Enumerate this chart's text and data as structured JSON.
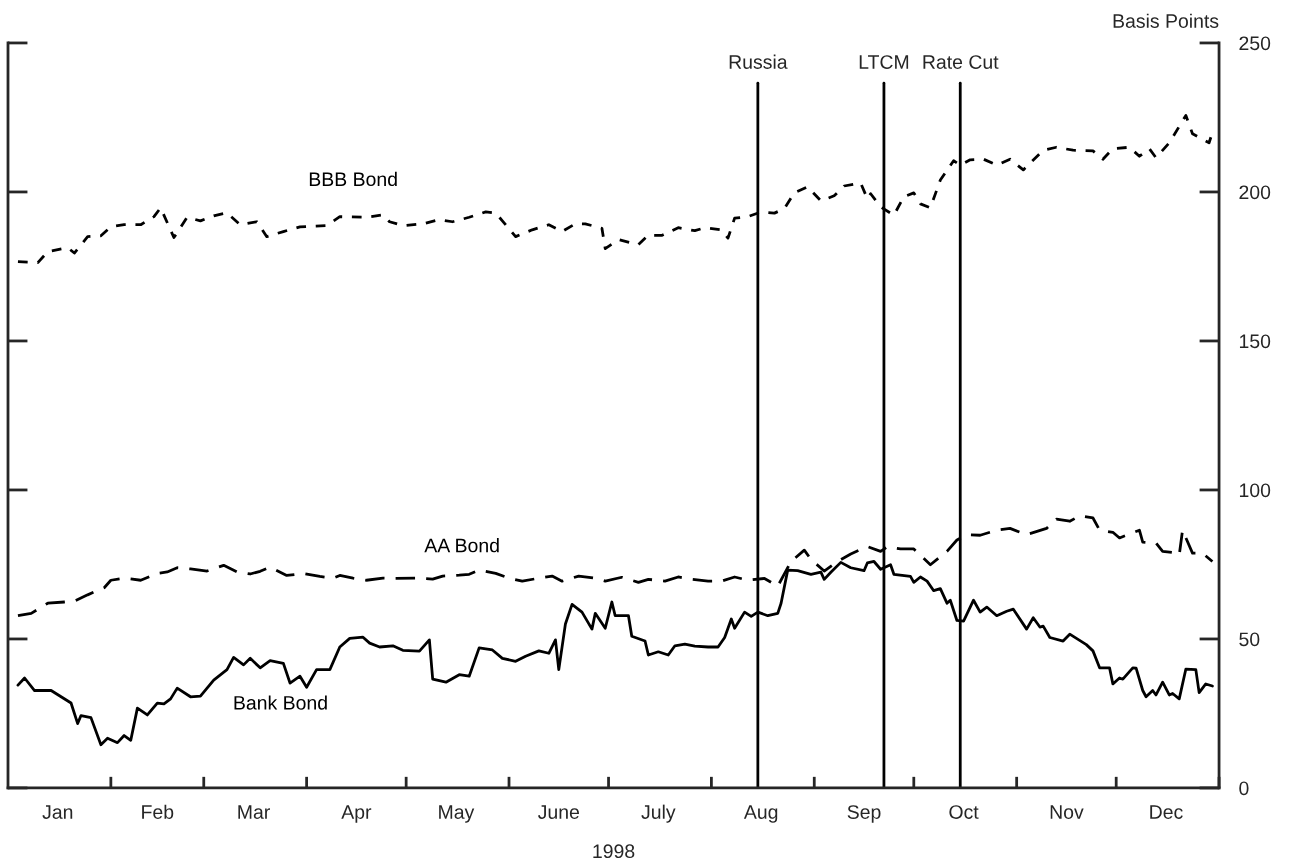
{
  "chart_data": {
    "type": "line",
    "xlabel": "1998",
    "ylabel": "Basis Points",
    "xlim": [
      "1998-01-01",
      "1999-01-01"
    ],
    "ylim": [
      0,
      250
    ],
    "yticks": [
      0,
      50,
      100,
      150,
      200,
      250
    ],
    "xticks": [
      {
        "value": "1998-01-16",
        "label": "Jan"
      },
      {
        "value": "1998-02-01",
        "label": null
      },
      {
        "value": "1998-02-15",
        "label": "Feb"
      },
      {
        "value": "1998-03-01",
        "label": null
      },
      {
        "value": "1998-03-16",
        "label": "Mar"
      },
      {
        "value": "1998-04-01",
        "label": null
      },
      {
        "value": "1998-04-16",
        "label": "Apr"
      },
      {
        "value": "1998-05-01",
        "label": null
      },
      {
        "value": "1998-05-16",
        "label": "May"
      },
      {
        "value": "1998-06-01",
        "label": null
      },
      {
        "value": "1998-06-16",
        "label": "June"
      },
      {
        "value": "1998-07-01",
        "label": null
      },
      {
        "value": "1998-07-16",
        "label": "July"
      },
      {
        "value": "1998-08-01",
        "label": null
      },
      {
        "value": "1998-08-16",
        "label": "Aug"
      },
      {
        "value": "1998-09-01",
        "label": null
      },
      {
        "value": "1998-09-16",
        "label": "Sep"
      },
      {
        "value": "1998-10-01",
        "label": null
      },
      {
        "value": "1998-10-16",
        "label": "Oct"
      },
      {
        "value": "1998-11-01",
        "label": null
      },
      {
        "value": "1998-11-16",
        "label": "Nov"
      },
      {
        "value": "1998-12-01",
        "label": null
      },
      {
        "value": "1998-12-16",
        "label": "Dec"
      },
      {
        "value": "1999-01-01",
        "label": null
      }
    ],
    "grid": false,
    "legend": false,
    "marker": "none",
    "ref_lines": [
      {
        "axis": "x",
        "value": "1998-08-15",
        "label": "Russia",
        "color": "#000000"
      },
      {
        "axis": "x",
        "value": "1998-09-22",
        "label": "LTCM",
        "color": "#000000"
      },
      {
        "axis": "x",
        "value": "1998-10-15",
        "label": "Rate Cut",
        "color": "#000000"
      }
    ],
    "series": [
      {
        "name": "BBB Bond",
        "color": "#000000",
        "line_style": "dotted",
        "x": [
          "1998-01-04",
          "1998-01-10",
          "1998-01-13",
          "1998-01-19",
          "1998-01-21",
          "1998-01-25",
          "1998-01-29",
          "1998-02-01",
          "1998-02-05",
          "1998-02-10",
          "1998-02-14",
          "1998-02-16",
          "1998-02-20",
          "1998-02-24",
          "1998-02-28",
          "1998-03-04",
          "1998-03-08",
          "1998-03-12",
          "1998-03-17",
          "1998-03-20",
          "1998-03-25",
          "1998-03-30",
          "1998-04-07",
          "1998-04-11",
          "1998-04-19",
          "1998-04-24",
          "1998-04-26",
          "1998-04-30",
          "1998-05-06",
          "1998-05-11",
          "1998-05-15",
          "1998-05-20",
          "1998-05-25",
          "1998-05-28",
          "1998-05-30",
          "1998-06-03",
          "1998-06-08",
          "1998-06-13",
          "1998-06-17",
          "1998-06-21",
          "1998-06-24",
          "1998-06-29",
          "1998-06-30",
          "1998-07-04",
          "1998-07-10",
          "1998-07-13",
          "1998-07-17",
          "1998-07-22",
          "1998-07-27",
          "1998-07-30",
          "1998-08-04",
          "1998-08-06",
          "1998-08-08",
          "1998-08-12",
          "1998-08-16",
          "1998-08-20",
          "1998-08-23",
          "1998-08-26",
          "1998-08-30",
          "1998-09-03",
          "1998-09-07",
          "1998-09-10",
          "1998-09-15",
          "1998-09-17",
          "1998-09-18",
          "1998-09-21",
          "1998-09-25",
          "1998-09-28",
          "1998-10-01",
          "1998-10-03",
          "1998-10-06",
          "1998-10-09",
          "1998-10-13",
          "1998-10-15",
          "1998-10-18",
          "1998-10-22",
          "1998-10-26",
          "1998-10-30",
          "1998-11-03",
          "1998-11-09",
          "1998-11-13",
          "1998-11-18",
          "1998-11-24",
          "1998-11-27",
          "1998-11-30",
          "1998-12-05",
          "1998-12-08",
          "1998-12-11",
          "1998-12-13",
          "1998-12-17",
          "1998-12-20",
          "1998-12-22",
          "1998-12-24",
          "1998-12-29",
          "1998-12-30"
        ],
        "values": [
          176.6,
          176.3,
          180,
          181.3,
          179.5,
          185,
          185.3,
          188.3,
          189,
          189,
          191.7,
          194.7,
          184.7,
          191.5,
          190.3,
          192,
          193,
          189,
          190,
          185,
          186.7,
          188.3,
          188.7,
          191.7,
          191.5,
          192.3,
          190,
          188.7,
          189.3,
          190.7,
          190,
          191.5,
          193.3,
          192.9,
          190.3,
          185,
          187.3,
          189,
          186.7,
          189.3,
          189.3,
          187.8,
          181,
          184,
          182.3,
          185.5,
          185.4,
          188,
          187,
          188,
          187.3,
          184.5,
          191.2,
          191.7,
          193.3,
          192.9,
          194.4,
          199.7,
          201.7,
          197,
          198.7,
          202,
          203,
          197.7,
          199.4,
          195,
          192.2,
          198.4,
          199.7,
          196,
          194.7,
          204,
          210.5,
          209,
          210.8,
          211,
          209,
          211,
          207.4,
          214,
          215,
          214,
          213.8,
          211,
          214.5,
          215,
          212,
          214.5,
          211.5,
          216.5,
          222,
          225.7,
          219.5,
          216.5,
          220
        ]
      },
      {
        "name": "AA Bond",
        "color": "#000000",
        "line_style": "dashed",
        "x": [
          "1998-01-04",
          "1998-01-08",
          "1998-01-13",
          "1998-01-18",
          "1998-01-21",
          "1998-01-25",
          "1998-01-30",
          "1998-02-01",
          "1998-02-05",
          "1998-02-10",
          "1998-02-15",
          "1998-02-18",
          "1998-02-21",
          "1998-02-25",
          "1998-03-02",
          "1998-03-07",
          "1998-03-11",
          "1998-03-15",
          "1998-03-18",
          "1998-03-21",
          "1998-03-26",
          "1998-03-31",
          "1998-04-05",
          "1998-04-09",
          "1998-04-11",
          "1998-04-15",
          "1998-04-19",
          "1998-04-24",
          "1998-04-27",
          "1998-05-05",
          "1998-05-09",
          "1998-05-12",
          "1998-05-17",
          "1998-05-20",
          "1998-05-23",
          "1998-05-28",
          "1998-06-01",
          "1998-06-05",
          "1998-06-10",
          "1998-06-14",
          "1998-06-17",
          "1998-06-22",
          "1998-06-27",
          "1998-06-30",
          "1998-07-05",
          "1998-07-10",
          "1998-07-13",
          "1998-07-18",
          "1998-07-22",
          "1998-07-26",
          "1998-07-31",
          "1998-08-04",
          "1998-08-08",
          "1998-08-12",
          "1998-08-17",
          "1998-08-21",
          "1998-08-25",
          "1998-08-29",
          "1998-08-31",
          "1998-09-04",
          "1998-09-08",
          "1998-09-12",
          "1998-09-17",
          "1998-09-21",
          "1998-09-23",
          "1998-09-27",
          "1998-10-01",
          "1998-10-06",
          "1998-10-11",
          "1998-10-14",
          "1998-10-17",
          "1998-10-21",
          "1998-10-26",
          "1998-10-30",
          "1998-11-04",
          "1998-11-10",
          "1998-11-13",
          "1998-11-17",
          "1998-11-20",
          "1998-11-24",
          "1998-11-26",
          "1998-11-30",
          "1998-12-02",
          "1998-12-08",
          "1998-12-09",
          "1998-12-13",
          "1998-12-15",
          "1998-12-18",
          "1998-12-20",
          "1998-12-21",
          "1998-12-24",
          "1998-12-27",
          "1998-12-30"
        ],
        "values": [
          57.8,
          58.6,
          62,
          62.4,
          62.7,
          64.8,
          67.2,
          69.7,
          70.4,
          69.7,
          72,
          72.5,
          73.9,
          73.5,
          72.8,
          74.7,
          72.5,
          71.8,
          72.7,
          74.1,
          71.3,
          72,
          71,
          70.4,
          71.3,
          70.4,
          69.7,
          70.4,
          70.3,
          70.4,
          70.1,
          71.1,
          71.4,
          71.7,
          73.1,
          72,
          70.4,
          69.4,
          70.4,
          71.1,
          69.4,
          71.1,
          70.4,
          69.4,
          70.7,
          69,
          70,
          69.4,
          70.8,
          70,
          69.4,
          69.4,
          70.8,
          69.7,
          70.3,
          67.7,
          76,
          79.8,
          76.7,
          72.8,
          76,
          78.5,
          81,
          79.4,
          80.9,
          80.2,
          80.2,
          74.9,
          79.4,
          83.2,
          85,
          84.8,
          86.5,
          87.1,
          85,
          87.1,
          90.2,
          89.5,
          91.3,
          90.6,
          86.5,
          85.8,
          83.9,
          86.5,
          82.5,
          82.2,
          79.4,
          79,
          78.1,
          86.5,
          78.8,
          78.8,
          76
        ]
      },
      {
        "name": "Bank Bond",
        "color": "#000000",
        "line_style": "solid",
        "x": [
          "1998-01-04",
          "1998-01-06",
          "1998-01-09",
          "1998-01-14",
          "1998-01-17",
          "1998-01-20",
          "1998-01-22",
          "1998-01-23",
          "1998-01-26",
          "1998-01-29",
          "1998-01-31",
          "1998-02-03",
          "1998-02-05",
          "1998-02-07",
          "1998-02-09",
          "1998-02-12",
          "1998-02-15",
          "1998-02-17",
          "1998-02-19",
          "1998-02-21",
          "1998-02-25",
          "1998-02-28",
          "1998-03-04",
          "1998-03-08",
          "1998-03-10",
          "1998-03-13",
          "1998-03-15",
          "1998-03-18",
          "1998-03-21",
          "1998-03-25",
          "1998-03-27",
          "1998-03-30",
          "1998-04-01",
          "1998-04-04",
          "1998-04-08",
          "1998-04-11",
          "1998-04-14",
          "1998-04-18",
          "1998-04-20",
          "1998-04-23",
          "1998-04-27",
          "1998-04-30",
          "1998-05-05",
          "1998-05-08",
          "1998-05-09",
          "1998-05-13",
          "1998-05-17",
          "1998-05-20",
          "1998-05-23",
          "1998-05-27",
          "1998-05-30",
          "1998-06-03",
          "1998-06-06",
          "1998-06-10",
          "1998-06-13",
          "1998-06-15",
          "1998-06-16",
          "1998-06-18",
          "1998-06-20",
          "1998-06-23",
          "1998-06-26",
          "1998-06-27",
          "1998-06-30",
          "1998-07-02",
          "1998-07-03",
          "1998-07-07",
          "1998-07-08",
          "1998-07-12",
          "1998-07-13",
          "1998-07-16",
          "1998-07-19",
          "1998-07-21",
          "1998-07-24",
          "1998-07-27",
          "1998-07-31",
          "1998-08-03",
          "1998-08-05",
          "1998-08-07",
          "1998-08-08",
          "1998-08-11",
          "1998-08-13",
          "1998-08-15",
          "1998-08-18",
          "1998-08-21",
          "1998-08-22",
          "1998-08-24",
          "1998-08-27",
          "1998-08-31",
          "1998-09-03",
          "1998-09-04",
          "1998-09-06",
          "1998-09-09",
          "1998-09-12",
          "1998-09-16",
          "1998-09-17",
          "1998-09-19",
          "1998-09-21",
          "1998-09-24",
          "1998-09-25",
          "1998-09-30",
          "1998-10-01",
          "1998-10-03",
          "1998-10-05",
          "1998-10-07",
          "1998-10-09",
          "1998-10-11",
          "1998-10-12",
          "1998-10-14",
          "1998-10-16",
          "1998-10-19",
          "1998-10-21",
          "1998-10-23",
          "1998-10-26",
          "1998-10-29",
          "1998-10-31",
          "1998-11-04",
          "1998-11-06",
          "1998-11-08",
          "1998-11-09",
          "1998-11-11",
          "1998-11-15",
          "1998-11-17",
          "1998-11-22",
          "1998-11-24",
          "1998-11-26",
          "1998-11-29",
          "1998-11-30",
          "1998-12-02",
          "1998-12-03",
          "1998-12-06",
          "1998-12-07",
          "1998-12-09",
          "1998-12-10",
          "1998-12-12",
          "1998-12-13",
          "1998-12-15",
          "1998-12-17",
          "1998-12-18",
          "1998-12-20",
          "1998-12-22",
          "1998-12-25",
          "1998-12-26",
          "1998-12-28",
          "1998-12-30"
        ],
        "values": [
          34.5,
          36.9,
          32.7,
          32.7,
          30.6,
          28.5,
          21.6,
          24.3,
          23.6,
          14.5,
          16.7,
          15.2,
          17.6,
          16,
          26.8,
          24.5,
          28.5,
          28.2,
          29.9,
          33.5,
          30.6,
          30.8,
          36.2,
          39.7,
          43.8,
          41.3,
          43.5,
          40.3,
          42.7,
          41.8,
          35.2,
          37.5,
          33.8,
          39.7,
          39.7,
          47.3,
          50.2,
          50.6,
          48.6,
          47.3,
          47.7,
          46.2,
          45.9,
          49.7,
          36.5,
          35.5,
          38,
          37.5,
          47,
          46.3,
          43.5,
          42.5,
          44.2,
          46,
          45.2,
          49.7,
          39.7,
          55,
          61.6,
          59,
          53.3,
          58.6,
          53.6,
          62.4,
          57.8,
          57.8,
          50.9,
          49.3,
          44.6,
          45.7,
          44.6,
          47.7,
          48.3,
          47.6,
          47.3,
          47.3,
          50.5,
          56.7,
          53.6,
          59,
          57.6,
          59,
          57.8,
          58.6,
          62,
          73.1,
          72.9,
          71.7,
          72.4,
          70,
          72.4,
          75.7,
          73.9,
          72.9,
          75.5,
          76,
          73.4,
          74.9,
          71.7,
          71,
          69,
          70.8,
          69.4,
          66.2,
          66.9,
          62,
          63,
          56.2,
          56,
          63,
          59,
          60.7,
          57.8,
          59.3,
          60,
          53.3,
          57.1,
          54,
          54.3,
          50.5,
          49.3,
          51.6,
          48.1,
          46,
          40.3,
          40.3,
          34.9,
          36.9,
          36.5,
          40.3,
          40.2,
          32.7,
          30.6,
          32.7,
          31.2,
          35.5,
          31.2,
          31.7,
          29.9,
          39.9,
          39.7,
          32,
          34.9,
          34.2
        ]
      }
    ]
  }
}
